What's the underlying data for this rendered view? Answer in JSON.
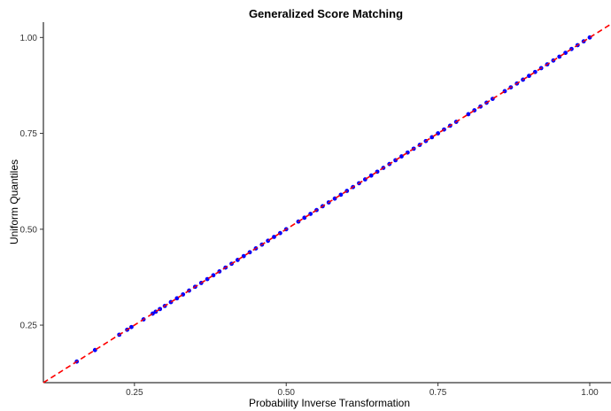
{
  "chart_data": {
    "type": "scatter",
    "title": "Generalized Score Matching",
    "xlabel": "Probability Inverse Transformation",
    "ylabel": "Uniform Quantiles",
    "xlim": [
      0.1,
      1.035
    ],
    "ylim": [
      0.1,
      1.04
    ],
    "x_ticks": [
      0.25,
      0.5,
      0.75,
      1.0
    ],
    "x_tick_labels": [
      "0.25",
      "0.50",
      "0.75",
      "1.00"
    ],
    "y_ticks": [
      0.25,
      0.5,
      0.75,
      1.0
    ],
    "y_tick_labels": [
      "0.25",
      "0.50",
      "0.75",
      "1.00"
    ],
    "grid": false,
    "reference_line": {
      "slope": 1,
      "intercept": 0,
      "style": "dashed",
      "color": "#ff0000"
    },
    "point_color": "#0000ff",
    "series": [
      {
        "x": [
          0.155,
          0.185,
          0.225,
          0.238,
          0.245,
          0.265,
          0.28,
          0.285,
          0.292,
          0.3,
          0.31,
          0.32,
          0.33,
          0.34,
          0.35,
          0.36,
          0.37,
          0.38,
          0.39,
          0.4,
          0.41,
          0.42,
          0.43,
          0.44,
          0.45,
          0.46,
          0.47,
          0.48,
          0.49,
          0.5,
          0.52,
          0.53,
          0.54,
          0.55,
          0.56,
          0.57,
          0.58,
          0.59,
          0.6,
          0.61,
          0.62,
          0.63,
          0.64,
          0.65,
          0.66,
          0.67,
          0.68,
          0.69,
          0.7,
          0.71,
          0.72,
          0.73,
          0.74,
          0.75,
          0.76,
          0.77,
          0.78,
          0.8,
          0.81,
          0.82,
          0.83,
          0.84,
          0.86,
          0.87,
          0.88,
          0.89,
          0.9,
          0.91,
          0.92,
          0.93,
          0.94,
          0.95,
          0.96,
          0.97,
          0.98,
          0.99,
          1.0
        ],
        "y": [
          0.155,
          0.185,
          0.225,
          0.238,
          0.245,
          0.265,
          0.28,
          0.285,
          0.292,
          0.3,
          0.31,
          0.32,
          0.33,
          0.34,
          0.35,
          0.36,
          0.37,
          0.38,
          0.39,
          0.4,
          0.41,
          0.42,
          0.43,
          0.44,
          0.45,
          0.46,
          0.47,
          0.48,
          0.49,
          0.5,
          0.52,
          0.53,
          0.54,
          0.55,
          0.56,
          0.57,
          0.58,
          0.59,
          0.6,
          0.61,
          0.62,
          0.63,
          0.64,
          0.65,
          0.66,
          0.67,
          0.68,
          0.69,
          0.7,
          0.71,
          0.72,
          0.73,
          0.74,
          0.75,
          0.76,
          0.77,
          0.78,
          0.8,
          0.81,
          0.82,
          0.83,
          0.84,
          0.86,
          0.87,
          0.88,
          0.89,
          0.9,
          0.91,
          0.92,
          0.93,
          0.94,
          0.95,
          0.96,
          0.97,
          0.98,
          0.99,
          1.0
        ]
      }
    ]
  }
}
